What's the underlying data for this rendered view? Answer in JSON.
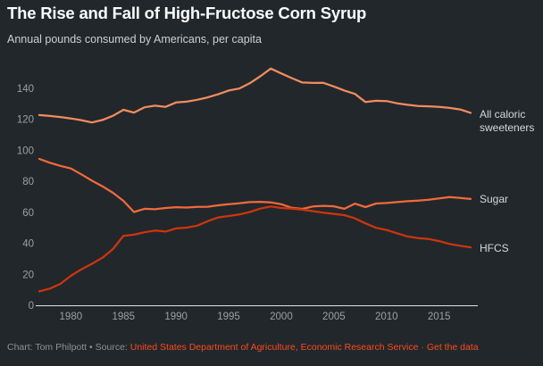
{
  "header": {
    "title": "The Rise and Fall of High-Fructose Corn Syrup",
    "subtitle": "Annual pounds consumed by Americans, per capita"
  },
  "chart_data": {
    "type": "line",
    "title": "The Rise and Fall of High-Fructose Corn Syrup",
    "subtitle": "Annual pounds consumed by Americans, per capita",
    "xlabel": "",
    "ylabel": "",
    "grid": false,
    "legend_position": "right",
    "xlim": [
      1977,
      2018
    ],
    "ylim": [
      0,
      140
    ],
    "x_ticks": [
      1980,
      1985,
      1990,
      1995,
      2000,
      2005,
      2010,
      2015
    ],
    "y_ticks": [
      0,
      20,
      40,
      60,
      80,
      100,
      120,
      140
    ],
    "x": [
      1977,
      1978,
      1979,
      1980,
      1981,
      1982,
      1983,
      1984,
      1985,
      1986,
      1987,
      1988,
      1989,
      1990,
      1991,
      1992,
      1993,
      1994,
      1995,
      1996,
      1997,
      1998,
      1999,
      2000,
      2001,
      2002,
      2003,
      2004,
      2005,
      2006,
      2007,
      2008,
      2009,
      2010,
      2011,
      2012,
      2013,
      2014,
      2015,
      2016,
      2017,
      2018
    ],
    "series": [
      {
        "name": "All caloric sweeteners",
        "color": "#f08c60",
        "values": [
          122.8,
          122.2,
          121.5,
          120.6,
          119.5,
          118.0,
          119.6,
          122.3,
          126.2,
          124.4,
          127.8,
          128.8,
          128.1,
          130.9,
          131.4,
          132.6,
          134.2,
          136.2,
          138.6,
          139.9,
          143.3,
          147.8,
          152.8,
          149.6,
          146.6,
          143.8,
          143.5,
          143.6,
          141.2,
          138.6,
          136.4,
          131.2,
          132.0,
          131.8,
          130.4,
          129.4,
          128.6,
          128.4,
          128.0,
          127.4,
          126.4,
          124.2
        ]
      },
      {
        "name": "Sugar",
        "color": "#f16a3b",
        "values": [
          94.5,
          92.0,
          90.0,
          88.3,
          84.5,
          80.4,
          76.8,
          72.6,
          67.4,
          60.2,
          62.3,
          62.0,
          62.8,
          63.3,
          63.1,
          63.5,
          63.6,
          64.5,
          65.3,
          65.8,
          66.6,
          66.8,
          66.4,
          65.2,
          62.9,
          62.2,
          63.8,
          64.2,
          63.9,
          62.3,
          65.6,
          63.4,
          65.7,
          66.0,
          66.6,
          67.2,
          67.6,
          68.1,
          69.0,
          69.8,
          69.3,
          68.6
        ]
      },
      {
        "name": "HFCS",
        "color": "#cd350e",
        "values": [
          9.0,
          10.8,
          13.8,
          19.0,
          23.2,
          26.8,
          30.7,
          36.3,
          44.8,
          45.6,
          47.1,
          48.2,
          47.6,
          49.6,
          50.1,
          51.4,
          54.3,
          56.7,
          57.6,
          58.6,
          60.2,
          62.4,
          63.8,
          62.8,
          62.4,
          61.7,
          60.8,
          59.8,
          59.0,
          58.2,
          56.1,
          52.9,
          50.0,
          48.6,
          46.5,
          44.4,
          43.4,
          42.8,
          41.4,
          39.6,
          38.4,
          37.4
        ]
      }
    ]
  },
  "legend": {
    "all": "All caloric sweeteners",
    "sugar": "Sugar",
    "hfcs": "HFCS"
  },
  "footer": {
    "credit": "Chart: Tom Philpott",
    "bullet": "•",
    "source_label": "Source:",
    "source_link": "United States Department of Agriculture, Economic Research Service",
    "mid_dot": "·",
    "data_link": "Get the data"
  },
  "theme": {
    "background": "#22272b",
    "title_color": "#fafbfb",
    "subtitle_color": "#ccd0d2",
    "tick_color": "#9aa0a3",
    "axis_line_color": "#e2e4e4",
    "legend_text_color": "#d6d8d9",
    "footer_text_color": "#8e9296",
    "link_color": "#fb4a1d"
  }
}
